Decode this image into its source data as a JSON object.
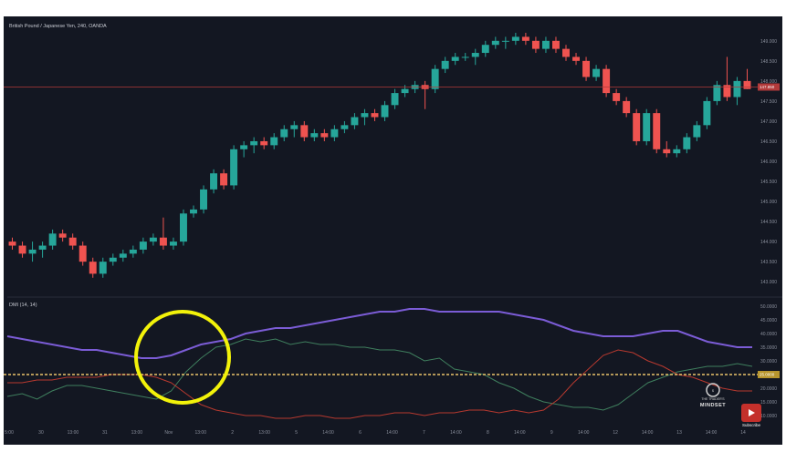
{
  "chart_title": "British Pound / Japanese Yen, 240, OANDA",
  "indicator_title": "DMI (14, 14)",
  "price_axis": [
    "149.000",
    "148.500",
    "148.000",
    "147.500",
    "147.000",
    "146.500",
    "146.000",
    "145.500",
    "145.000",
    "144.500",
    "144.000",
    "143.500",
    "143.000"
  ],
  "last_price_tag": "147.850",
  "indicator_axis": [
    "50.0000",
    "45.0000",
    "40.0000",
    "35.0000",
    "30.0000",
    "25.0000",
    "20.0000",
    "15.0000",
    "10.0000"
  ],
  "level_tag": "25.0000",
  "time_axis": [
    "5:00",
    "30",
    "13:00",
    "31",
    "13:00",
    "Nov",
    "13:00",
    "2",
    "13:00",
    "5",
    "14:00",
    "6",
    "14:00",
    "7",
    "14:00",
    "8",
    "14:00",
    "9",
    "14:00",
    "12",
    "14:00",
    "13",
    "14:00",
    "14"
  ],
  "watermark": {
    "brand": "MINDSET",
    "subtitle": "THE TRADER'S"
  },
  "youtube": {
    "label": "Subscribe"
  },
  "colors": {
    "background": "#131722",
    "up_candle": "#26a69a",
    "down_candle": "#ef5350",
    "adx_line": "#7b5cd6",
    "plus_di": "#3f7f5e",
    "minus_di": "#b7392f",
    "level_line": "#e9c46a",
    "highlight_circle": "#f2f20a",
    "price_line": "#b23a3a"
  },
  "chart_data": [
    {
      "type": "candlestick",
      "title": "British Pound / Japanese Yen, 240, OANDA",
      "ylim": [
        142.8,
        149.2
      ],
      "candles": [
        {
          "o": 144.0,
          "h": 144.1,
          "l": 143.8,
          "c": 143.9
        },
        {
          "o": 143.9,
          "h": 144.0,
          "l": 143.6,
          "c": 143.7
        },
        {
          "o": 143.7,
          "h": 144.0,
          "l": 143.5,
          "c": 143.8
        },
        {
          "o": 143.8,
          "h": 144.0,
          "l": 143.6,
          "c": 143.9
        },
        {
          "o": 143.9,
          "h": 144.3,
          "l": 143.8,
          "c": 144.2
        },
        {
          "o": 144.2,
          "h": 144.3,
          "l": 144.0,
          "c": 144.1
        },
        {
          "o": 144.1,
          "h": 144.2,
          "l": 143.8,
          "c": 143.9
        },
        {
          "o": 143.9,
          "h": 144.0,
          "l": 143.4,
          "c": 143.5
        },
        {
          "o": 143.5,
          "h": 143.6,
          "l": 143.1,
          "c": 143.2
        },
        {
          "o": 143.2,
          "h": 143.6,
          "l": 143.1,
          "c": 143.5
        },
        {
          "o": 143.5,
          "h": 143.7,
          "l": 143.4,
          "c": 143.6
        },
        {
          "o": 143.6,
          "h": 143.8,
          "l": 143.5,
          "c": 143.7
        },
        {
          "o": 143.7,
          "h": 143.9,
          "l": 143.6,
          "c": 143.8
        },
        {
          "o": 143.8,
          "h": 144.1,
          "l": 143.7,
          "c": 144.0
        },
        {
          "o": 144.0,
          "h": 144.2,
          "l": 143.9,
          "c": 144.1
        },
        {
          "o": 144.1,
          "h": 144.6,
          "l": 143.8,
          "c": 143.9
        },
        {
          "o": 143.9,
          "h": 144.1,
          "l": 143.8,
          "c": 144.0
        },
        {
          "o": 144.0,
          "h": 144.8,
          "l": 143.9,
          "c": 144.7
        },
        {
          "o": 144.7,
          "h": 144.9,
          "l": 144.6,
          "c": 144.8
        },
        {
          "o": 144.8,
          "h": 145.4,
          "l": 144.7,
          "c": 145.3
        },
        {
          "o": 145.3,
          "h": 145.8,
          "l": 145.2,
          "c": 145.7
        },
        {
          "o": 145.7,
          "h": 145.8,
          "l": 145.3,
          "c": 145.4
        },
        {
          "o": 145.4,
          "h": 146.4,
          "l": 145.3,
          "c": 146.3
        },
        {
          "o": 146.3,
          "h": 146.5,
          "l": 146.1,
          "c": 146.4
        },
        {
          "o": 146.4,
          "h": 146.6,
          "l": 146.2,
          "c": 146.5
        },
        {
          "o": 146.5,
          "h": 146.6,
          "l": 146.3,
          "c": 146.4
        },
        {
          "o": 146.4,
          "h": 146.7,
          "l": 146.3,
          "c": 146.6
        },
        {
          "o": 146.6,
          "h": 146.9,
          "l": 146.5,
          "c": 146.8
        },
        {
          "o": 146.8,
          "h": 147.0,
          "l": 146.6,
          "c": 146.9
        },
        {
          "o": 146.9,
          "h": 147.0,
          "l": 146.5,
          "c": 146.6
        },
        {
          "o": 146.6,
          "h": 146.8,
          "l": 146.5,
          "c": 146.7
        },
        {
          "o": 146.7,
          "h": 146.8,
          "l": 146.5,
          "c": 146.6
        },
        {
          "o": 146.6,
          "h": 146.9,
          "l": 146.5,
          "c": 146.8
        },
        {
          "o": 146.8,
          "h": 147.0,
          "l": 146.7,
          "c": 146.9
        },
        {
          "o": 146.9,
          "h": 147.2,
          "l": 146.8,
          "c": 147.1
        },
        {
          "o": 147.1,
          "h": 147.3,
          "l": 146.9,
          "c": 147.2
        },
        {
          "o": 147.2,
          "h": 147.3,
          "l": 147.0,
          "c": 147.1
        },
        {
          "o": 147.1,
          "h": 147.5,
          "l": 147.0,
          "c": 147.4
        },
        {
          "o": 147.4,
          "h": 147.8,
          "l": 147.3,
          "c": 147.7
        },
        {
          "o": 147.7,
          "h": 147.9,
          "l": 147.6,
          "c": 147.8
        },
        {
          "o": 147.8,
          "h": 148.0,
          "l": 147.7,
          "c": 147.9
        },
        {
          "o": 147.9,
          "h": 148.0,
          "l": 147.3,
          "c": 147.8
        },
        {
          "o": 147.8,
          "h": 148.4,
          "l": 147.7,
          "c": 148.3
        },
        {
          "o": 148.3,
          "h": 148.6,
          "l": 148.2,
          "c": 148.5
        },
        {
          "o": 148.5,
          "h": 148.7,
          "l": 148.4,
          "c": 148.6
        },
        {
          "o": 148.6,
          "h": 148.7,
          "l": 148.5,
          "c": 148.6
        },
        {
          "o": 148.6,
          "h": 148.8,
          "l": 148.4,
          "c": 148.7
        },
        {
          "o": 148.7,
          "h": 149.0,
          "l": 148.6,
          "c": 148.9
        },
        {
          "o": 148.9,
          "h": 149.1,
          "l": 148.8,
          "c": 149.0
        },
        {
          "o": 149.0,
          "h": 149.1,
          "l": 148.8,
          "c": 149.0
        },
        {
          "o": 149.0,
          "h": 149.2,
          "l": 148.9,
          "c": 149.1
        },
        {
          "o": 149.1,
          "h": 149.2,
          "l": 148.9,
          "c": 149.0
        },
        {
          "o": 149.0,
          "h": 149.1,
          "l": 148.7,
          "c": 148.8
        },
        {
          "o": 148.8,
          "h": 149.1,
          "l": 148.7,
          "c": 149.0
        },
        {
          "o": 149.0,
          "h": 149.1,
          "l": 148.7,
          "c": 148.8
        },
        {
          "o": 148.8,
          "h": 148.9,
          "l": 148.5,
          "c": 148.6
        },
        {
          "o": 148.6,
          "h": 148.7,
          "l": 148.4,
          "c": 148.5
        },
        {
          "o": 148.5,
          "h": 148.6,
          "l": 148.0,
          "c": 148.1
        },
        {
          "o": 148.1,
          "h": 148.4,
          "l": 148.0,
          "c": 148.3
        },
        {
          "o": 148.3,
          "h": 148.4,
          "l": 147.6,
          "c": 147.7
        },
        {
          "o": 147.7,
          "h": 147.8,
          "l": 147.4,
          "c": 147.5
        },
        {
          "o": 147.5,
          "h": 147.6,
          "l": 147.1,
          "c": 147.2
        },
        {
          "o": 147.2,
          "h": 147.3,
          "l": 146.4,
          "c": 146.5
        },
        {
          "o": 146.5,
          "h": 147.3,
          "l": 146.4,
          "c": 147.2
        },
        {
          "o": 147.2,
          "h": 147.3,
          "l": 146.2,
          "c": 146.3
        },
        {
          "o": 146.3,
          "h": 146.5,
          "l": 146.1,
          "c": 146.2
        },
        {
          "o": 146.2,
          "h": 146.4,
          "l": 146.1,
          "c": 146.3
        },
        {
          "o": 146.3,
          "h": 146.7,
          "l": 146.2,
          "c": 146.6
        },
        {
          "o": 146.6,
          "h": 147.0,
          "l": 146.5,
          "c": 146.9
        },
        {
          "o": 146.9,
          "h": 147.6,
          "l": 146.8,
          "c": 147.5
        },
        {
          "o": 147.5,
          "h": 148.0,
          "l": 147.4,
          "c": 147.9
        },
        {
          "o": 147.9,
          "h": 148.6,
          "l": 147.5,
          "c": 147.6
        },
        {
          "o": 147.6,
          "h": 148.1,
          "l": 147.4,
          "c": 148.0
        },
        {
          "o": 148.0,
          "h": 148.3,
          "l": 147.8,
          "c": 147.8
        }
      ],
      "last_price": 147.85
    },
    {
      "type": "line",
      "title": "DMI (14, 14)",
      "ylim": [
        8,
        52
      ],
      "level": 25,
      "series": [
        {
          "name": "ADX",
          "values": [
            39,
            38,
            37,
            36,
            35,
            34,
            34,
            33,
            32,
            31,
            31,
            32,
            34,
            36,
            37,
            38,
            40,
            41,
            42,
            42,
            43,
            44,
            45,
            46,
            47,
            48,
            48,
            49,
            49,
            48,
            48,
            48,
            48,
            48,
            47,
            46,
            45,
            43,
            41,
            40,
            39,
            39,
            39,
            40,
            41,
            41,
            39,
            37,
            36,
            35,
            35
          ]
        },
        {
          "name": "+DI",
          "values": [
            17,
            18,
            16,
            19,
            21,
            21,
            20,
            19,
            18,
            17,
            16,
            19,
            26,
            31,
            35,
            36,
            38,
            37,
            38,
            36,
            37,
            36,
            36,
            35,
            35,
            34,
            34,
            33,
            30,
            31,
            27,
            26,
            25,
            22,
            20,
            17,
            15,
            14,
            13,
            13,
            12,
            14,
            18,
            22,
            24,
            26,
            27,
            28,
            28,
            29,
            28
          ]
        },
        {
          "name": "-DI",
          "values": [
            22,
            22,
            23,
            23,
            24,
            24,
            24,
            25,
            25,
            25,
            24,
            22,
            18,
            14,
            12,
            11,
            10,
            10,
            9,
            9,
            10,
            10,
            9,
            9,
            10,
            10,
            11,
            11,
            10,
            11,
            11,
            12,
            12,
            11,
            12,
            11,
            12,
            16,
            22,
            27,
            32,
            34,
            33,
            30,
            28,
            25,
            24,
            22,
            20,
            19,
            19
          ]
        }
      ]
    }
  ]
}
